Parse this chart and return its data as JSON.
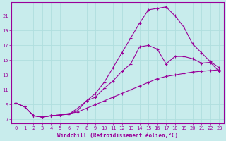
{
  "xlabel": "Windchill (Refroidissement éolien,°C)",
  "bg_color": "#c8ecec",
  "line_color": "#990099",
  "grid_color": "#b0dede",
  "line1_x": [
    0,
    1,
    2,
    3,
    4,
    5,
    6,
    7,
    8,
    9,
    10,
    11,
    12,
    13,
    14,
    15,
    16,
    17,
    18,
    19,
    20,
    21,
    22,
    23
  ],
  "line1_y": [
    9.2,
    8.7,
    7.5,
    7.3,
    7.5,
    7.6,
    7.7,
    8.5,
    9.5,
    10.0,
    11.2,
    12.2,
    13.5,
    14.5,
    16.8,
    17.0,
    16.5,
    14.5,
    15.5,
    15.5,
    15.2,
    14.6,
    14.7,
    13.5
  ],
  "line2_x": [
    0,
    1,
    2,
    3,
    4,
    5,
    6,
    7,
    8,
    9,
    10,
    11,
    12,
    13,
    14,
    15,
    16,
    17,
    18,
    19,
    20,
    21,
    22,
    23
  ],
  "line2_y": [
    9.2,
    8.7,
    7.5,
    7.3,
    7.5,
    7.6,
    7.7,
    8.2,
    9.5,
    10.5,
    12.0,
    14.0,
    16.0,
    18.0,
    20.0,
    21.8,
    22.0,
    22.2,
    21.0,
    19.5,
    17.2,
    16.0,
    14.8,
    14.0
  ],
  "line3_x": [
    0,
    1,
    2,
    3,
    4,
    5,
    6,
    7,
    8,
    9,
    10,
    11,
    12,
    13,
    14,
    15,
    16,
    17,
    18,
    19,
    20,
    21,
    22,
    23
  ],
  "line3_y": [
    9.2,
    8.7,
    7.5,
    7.3,
    7.5,
    7.6,
    7.8,
    8.0,
    8.5,
    9.0,
    9.5,
    10.0,
    10.5,
    11.0,
    11.5,
    12.0,
    12.5,
    12.8,
    13.0,
    13.2,
    13.4,
    13.5,
    13.6,
    13.7
  ],
  "xlim": [
    -0.5,
    23.5
  ],
  "ylim": [
    6.5,
    22.8
  ],
  "yticks": [
    7,
    9,
    11,
    13,
    15,
    17,
    19,
    21
  ],
  "xticks": [
    0,
    1,
    2,
    3,
    4,
    5,
    6,
    7,
    8,
    9,
    10,
    11,
    12,
    13,
    14,
    15,
    16,
    17,
    18,
    19,
    20,
    21,
    22,
    23
  ],
  "marker": "+",
  "markersize": 3,
  "linewidth": 0.8,
  "tick_fontsize": 5,
  "xlabel_fontsize": 5.5
}
